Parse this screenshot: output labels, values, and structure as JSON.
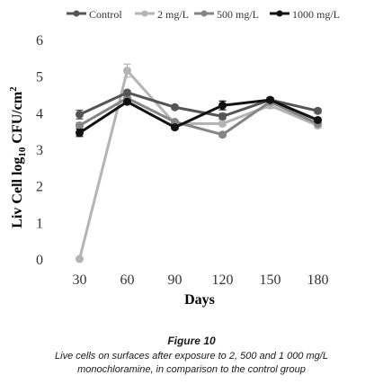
{
  "chart_data": {
    "type": "line",
    "x": [
      30,
      60,
      90,
      120,
      150,
      180
    ],
    "xlabel": "Days",
    "ylabel_main": "Liv Cell  log",
    "ylabel_sub": "10",
    "ylabel_tail": " CFU/cm",
    "ylabel_sup": "2",
    "ylim": [
      0,
      6
    ],
    "yticks": [
      0,
      1,
      2,
      3,
      4,
      5,
      6
    ],
    "legend_position": "top",
    "grid": false,
    "series": [
      {
        "name": "Control",
        "color": "#555555",
        "values": [
          3.95,
          4.55,
          4.15,
          3.9,
          4.35,
          4.05
        ],
        "errors": [
          0.12,
          0.05,
          0.05,
          0.08,
          0.05,
          0.06
        ]
      },
      {
        "name": "2 mg/L",
        "color": "#b4b4b4",
        "values": [
          0.0,
          5.15,
          3.7,
          3.7,
          4.2,
          3.65
        ],
        "errors": [
          0.05,
          0.18,
          0.05,
          0.06,
          0.08,
          0.06
        ]
      },
      {
        "name": "500 mg/L",
        "color": "#858585",
        "values": [
          3.65,
          4.4,
          3.75,
          3.4,
          4.3,
          3.7
        ],
        "errors": [
          0.08,
          0.05,
          0.05,
          0.06,
          0.05,
          0.05
        ]
      },
      {
        "name": "1000 mg/L",
        "color": "#111111",
        "values": [
          3.45,
          4.3,
          3.6,
          4.2,
          4.35,
          3.8
        ],
        "errors": [
          0.1,
          0.05,
          0.05,
          0.12,
          0.06,
          0.05
        ]
      }
    ]
  },
  "caption": {
    "title": "Figure 10",
    "text": "Live cells on surfaces after exposure to 2, 500 and 1 000 mg/L monochloramine, in comparison to the control group"
  }
}
